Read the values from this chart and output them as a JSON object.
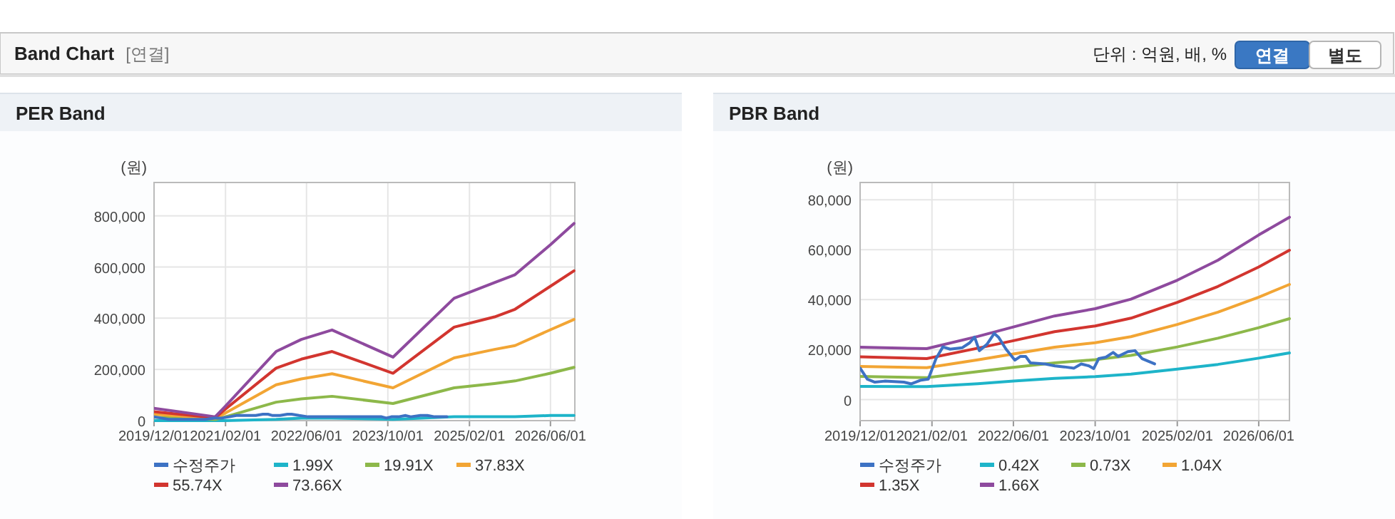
{
  "chart_data": [
    {
      "type": "other",
      "title": "Band Chart",
      "annotations": [
        "[연결]",
        "단위 : 억원, 배, %",
        "연결",
        "별도"
      ]
    },
    {
      "type": "line",
      "title": "PER Band",
      "ylabel": "(원)",
      "legend": "bottom",
      "grid": true,
      "xlim": [
        "2019-12-01",
        "2026-10-25"
      ],
      "xticks": [
        {
          "value": "2019-12-01",
          "label": "2019/12/01"
        },
        {
          "value": "2021-02-01",
          "label": "2021/02/01"
        },
        {
          "value": "2022-06-01",
          "label": "2022/06/01"
        },
        {
          "value": "2023-10-01",
          "label": "2023/10/01"
        },
        {
          "value": "2025-02-01",
          "label": "2025/02/01"
        },
        {
          "value": "2026-06-01",
          "label": "2026/06/01"
        }
      ],
      "ylim": [
        0,
        930000
      ],
      "yticks": [
        0,
        {
          "value": 200000,
          "label": "200,000"
        },
        {
          "value": 400000,
          "label": "400,000"
        },
        {
          "value": 600000,
          "label": "600,000"
        },
        {
          "value": 800000,
          "label": "800,000"
        }
      ],
      "x": [
        "2019-12",
        "2020-12",
        "2021-02",
        "2021-12",
        "2022-05",
        "2022-11",
        "2023-11",
        "2024-11",
        "2025-07",
        "2025-11",
        "2026-06",
        "2026-10-20"
      ],
      "series": [
        {
          "name": "수정주가",
          "color": "#3d72c4",
          "x": [
            "2019-12-01",
            "2020-01-13",
            "2020-02-27",
            "2020-04-25",
            "2020-08-18",
            "2020-10-01",
            "2020-11-28",
            "2021-01-10",
            "2021-02-25",
            "2021-04-07",
            "2021-05-20",
            "2021-08-01",
            "2021-09-13",
            "2021-10-13",
            "2021-11-10",
            "2021-12-25",
            "2022-02-07",
            "2022-03-04",
            "2022-04-18",
            "2022-06-10",
            "2022-07-13",
            "2022-08-13",
            "2022-09-10",
            "2022-12-07",
            "2023-02-03",
            "2023-04-01",
            "2023-05-28",
            "2023-07-10",
            "2023-08-25",
            "2023-09-22",
            "2023-10-22",
            "2023-12-04",
            "2024-01-16",
            "2024-02-15",
            "2024-04-13",
            "2024-05-25",
            "2024-07-07",
            "2024-09-19"
          ],
          "values": [
            15000,
            10000,
            5000,
            5000,
            5000,
            5000,
            10000,
            10000,
            15000,
            20000,
            20000,
            20000,
            25000,
            25000,
            20000,
            20000,
            25000,
            25000,
            20000,
            15000,
            15000,
            15000,
            15000,
            15000,
            15000,
            15000,
            15000,
            15000,
            15000,
            10000,
            15000,
            15000,
            20000,
            15000,
            20000,
            20000,
            15000,
            15000
          ]
        },
        {
          "name": "1.99X",
          "color": "#1eb4c9",
          "values": [
            0,
            0,
            0,
            5000,
            10000,
            10000,
            5000,
            15000,
            15000,
            15000,
            20000,
            20000
          ]
        },
        {
          "name": "19.91X",
          "color": "#8db84a",
          "values": [
            13000,
            4000,
            15000,
            72000,
            85000,
            95000,
            67000,
            128000,
            145000,
            155000,
            185000,
            208000
          ]
        },
        {
          "name": "37.83X",
          "color": "#f2a534",
          "values": [
            25000,
            8000,
            30000,
            140000,
            163000,
            183000,
            128000,
            245000,
            278000,
            293000,
            355000,
            395000
          ]
        },
        {
          "name": "55.74X",
          "color": "#d2352f",
          "values": [
            35000,
            11000,
            45000,
            205000,
            240000,
            270000,
            185000,
            365000,
            405000,
            435000,
            525000,
            585000
          ]
        },
        {
          "name": "73.66X",
          "color": "#8e4a9e",
          "values": [
            48000,
            15000,
            57000,
            270000,
            317000,
            354000,
            248000,
            478000,
            539000,
            570000,
            687000,
            770000
          ]
        }
      ]
    },
    {
      "type": "line",
      "title": "PBR Band",
      "ylabel": "(원)",
      "legend": "bottom",
      "grid": true,
      "xlim": [
        "2019-12-01",
        "2026-12-01"
      ],
      "xticks": [
        {
          "value": "2019-12-01",
          "label": "2019/12/01"
        },
        {
          "value": "2021-02-01",
          "label": "2021/02/01"
        },
        {
          "value": "2022-06-01",
          "label": "2022/06/01"
        },
        {
          "value": "2023-10-01",
          "label": "2023/10/01"
        },
        {
          "value": "2025-02-01",
          "label": "2025/02/01"
        },
        {
          "value": "2026-06-01",
          "label": "2026/06/01"
        }
      ],
      "ylim": [
        -8400,
        86900
      ],
      "yticks": [
        0,
        {
          "value": 20000,
          "label": "20,000"
        },
        {
          "value": 40000,
          "label": "40,000"
        },
        {
          "value": 60000,
          "label": "60,000"
        },
        {
          "value": 80000,
          "label": "80,000"
        }
      ],
      "x": [
        "2019-12",
        "2021-01",
        "2021-11",
        "2022-06",
        "2023-02",
        "2023-10",
        "2024-05",
        "2025-02",
        "2025-10",
        "2026-06",
        "2026-12"
      ],
      "series": [
        {
          "name": "수정주가",
          "color": "#3d72c4",
          "x": [
            "2019-12-01",
            "2020-01-13",
            "2020-02-27",
            "2020-04-25",
            "2020-08-18",
            "2020-10-01",
            "2020-11-28",
            "2021-01-10",
            "2021-02-25",
            "2021-04-07",
            "2021-05-20",
            "2021-08-01",
            "2021-09-13",
            "2021-10-13",
            "2021-11-10",
            "2021-12-25",
            "2022-02-07",
            "2022-03-04",
            "2022-04-18",
            "2022-06-10",
            "2022-07-13",
            "2022-08-13",
            "2022-09-10",
            "2022-12-07",
            "2023-02-03",
            "2023-04-01",
            "2023-05-28",
            "2023-07-10",
            "2023-08-25",
            "2023-09-22",
            "2023-10-22",
            "2023-12-04",
            "2024-01-16",
            "2024-02-15",
            "2024-04-13",
            "2024-05-25",
            "2024-07-07",
            "2024-09-19"
          ],
          "values": [
            12600,
            8200,
            7000,
            7400,
            7000,
            6300,
            7800,
            8200,
            16400,
            21100,
            20200,
            20800,
            22700,
            25000,
            19600,
            22100,
            26500,
            25000,
            20200,
            15800,
            17300,
            17300,
            14700,
            14300,
            13500,
            13100,
            12600,
            14300,
            13500,
            12400,
            16400,
            17000,
            18900,
            17300,
            19200,
            19600,
            16400,
            14300
          ]
        },
        {
          "name": "0.42X",
          "color": "#1eb4c9",
          "values": [
            5300,
            5200,
            6400,
            7400,
            8500,
            9200,
            10200,
            12200,
            14100,
            16600,
            18700
          ]
        },
        {
          "name": "0.73X",
          "color": "#8db84a",
          "values": [
            9300,
            8800,
            11200,
            12900,
            14700,
            16000,
            17700,
            21100,
            24600,
            28800,
            32400
          ]
        },
        {
          "name": "1.04X",
          "color": "#f2a534",
          "values": [
            13300,
            12800,
            15900,
            18300,
            21000,
            22800,
            25200,
            30100,
            35000,
            41000,
            46100
          ]
        },
        {
          "name": "1.35X",
          "color": "#d2352f",
          "values": [
            17100,
            16400,
            20600,
            23600,
            27200,
            29500,
            32600,
            38900,
            45300,
            53100,
            59800
          ]
        },
        {
          "name": "1.66X",
          "color": "#8e4a9e",
          "values": [
            21000,
            20400,
            25300,
            29100,
            33500,
            36400,
            40200,
            47800,
            55800,
            65900,
            73000
          ]
        }
      ]
    }
  ]
}
